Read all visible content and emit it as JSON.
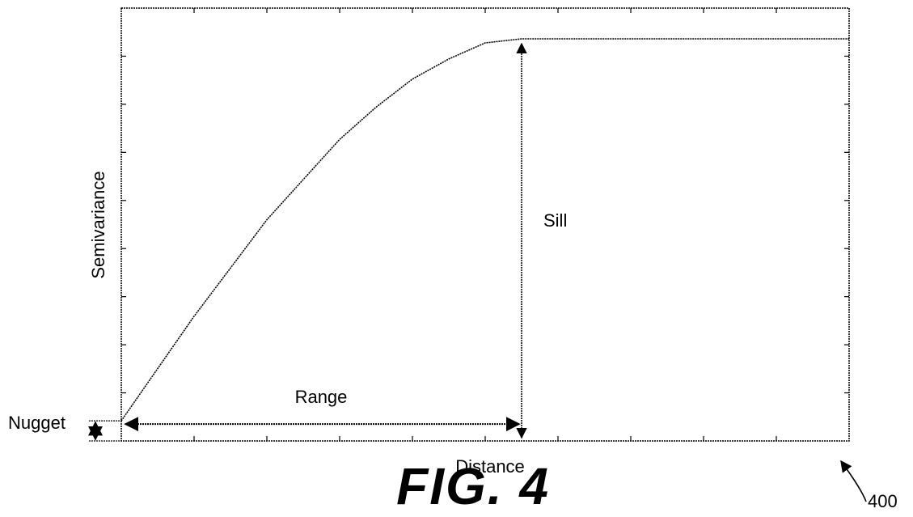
{
  "chart_data": {
    "type": "line",
    "title": "",
    "xlabel": "Distance",
    "ylabel": "Semivariance",
    "xlim": [
      0,
      10
    ],
    "ylim": [
      0,
      10
    ],
    "grid": false,
    "x_tick_labels_shown": false,
    "y_tick_labels_shown": false,
    "series": [
      {
        "model": "spherical semivariogram",
        "nugget": 0.5,
        "sill": 10,
        "range": 5.5,
        "x": [
          0,
          0.5,
          1,
          1.5,
          2,
          2.5,
          3,
          3.5,
          4,
          4.5,
          5,
          5.5,
          6,
          7,
          8,
          9,
          10
        ],
        "y": [
          0.5,
          1.8,
          3.1,
          4.3,
          5.5,
          6.5,
          7.5,
          8.3,
          9.0,
          9.5,
          9.9,
          10,
          10,
          10,
          10,
          10,
          10
        ]
      }
    ],
    "annotations": {
      "sill": "Sill",
      "range": "Range",
      "nugget": "Nugget"
    }
  },
  "figure": {
    "title": "FIG. 4",
    "reference_number": "400"
  }
}
